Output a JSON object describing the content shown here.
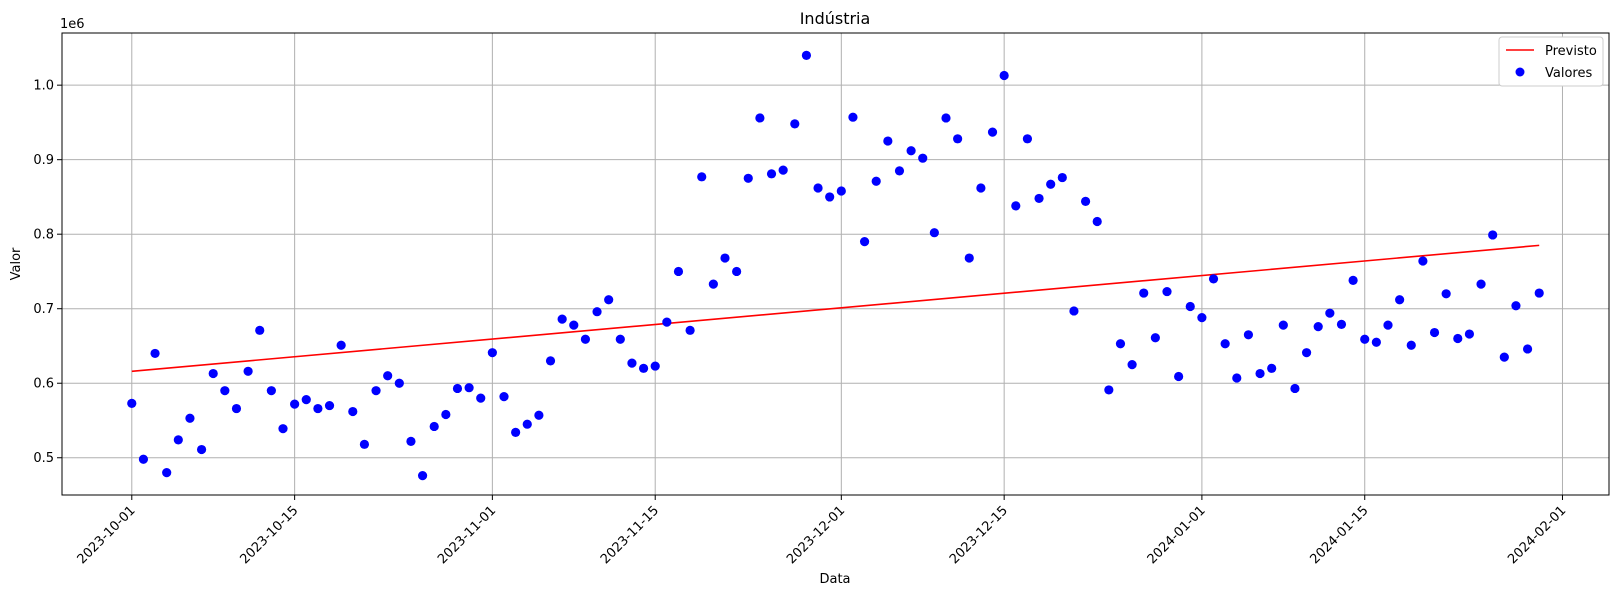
{
  "chart_data": {
    "type": "scatter",
    "title": "Indústria",
    "xlabel": "Data",
    "ylabel": "Valor",
    "y_offset_label": "1e6",
    "x_ticks": [
      "2023-10-01",
      "2023-10-15",
      "2023-11-01",
      "2023-11-15",
      "2023-12-01",
      "2023-12-15",
      "2024-01-01",
      "2024-01-15",
      "2024-02-01"
    ],
    "y_ticks": [
      "0.5",
      "0.6",
      "0.7",
      "0.8",
      "0.9",
      "1.0"
    ],
    "xlim": [
      "2023-09-25",
      "2024-02-05"
    ],
    "ylim": [
      450000,
      1070000
    ],
    "grid": true,
    "legend_position": "top-right",
    "series": [
      {
        "name": "Previsto",
        "kind": "line",
        "color": "#ff0000",
        "points": [
          [
            "2023-10-01",
            616000
          ],
          [
            "2024-01-30",
            785000
          ]
        ]
      },
      {
        "name": "Valores",
        "kind": "scatter",
        "color": "#0000ff",
        "start": "2023-10-01",
        "values": [
          573000,
          498000,
          640000,
          480000,
          524000,
          553000,
          511000,
          613000,
          590000,
          566000,
          616000,
          671000,
          590000,
          539000,
          572000,
          578000,
          566000,
          570000,
          651000,
          562000,
          518000,
          590000,
          610000,
          600000,
          522000,
          476000,
          542000,
          558000,
          593000,
          594000,
          580000,
          641000,
          582000,
          534000,
          545000,
          557000,
          630000,
          686000,
          678000,
          659000,
          696000,
          712000,
          659000,
          627000,
          620000,
          623000,
          682000,
          750000,
          671000,
          877000,
          733000,
          768000,
          750000,
          875000,
          956000,
          881000,
          886000,
          948000,
          1040000,
          862000,
          850000,
          858000,
          957000,
          790000,
          871000,
          925000,
          885000,
          912000,
          902000,
          802000,
          956000,
          928000,
          768000,
          862000,
          937000,
          1013000,
          838000,
          928000,
          848000,
          867000,
          876000,
          697000,
          844000,
          817000,
          591000,
          653000,
          625000,
          721000,
          661000,
          723000,
          609000,
          703000,
          688000,
          740000,
          653000,
          607000,
          665000,
          613000,
          620000,
          678000,
          593000,
          641000,
          676000,
          694000,
          679000,
          738000,
          659000,
          655000,
          678000,
          712000,
          651000,
          764000,
          668000,
          720000,
          660000,
          666000,
          733000,
          799000,
          635000,
          704000,
          646000,
          721000
        ]
      }
    ]
  }
}
